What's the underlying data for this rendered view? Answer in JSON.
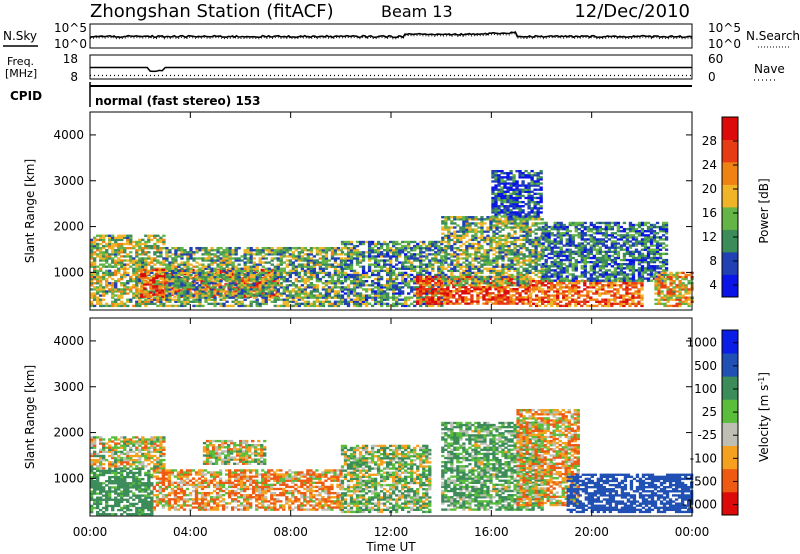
{
  "header": {
    "station": "Zhongshan Station (fitACF)",
    "beam": "Beam 13",
    "date": "12/Dec/2010"
  },
  "noise_panel": {
    "left_label": "N.Sky",
    "right_label": "N.Search",
    "left_ticks": [
      "10^5",
      "10^0"
    ],
    "right_ticks": [
      "10^5",
      "10^0"
    ]
  },
  "freq_panel": {
    "left_label_1": "Freq.",
    "left_label_2": "[MHz]",
    "right_label": "Nave",
    "left_ticks": [
      "18",
      "8"
    ],
    "right_ticks": [
      "60",
      "0"
    ]
  },
  "cpid": {
    "label": "CPID",
    "mode_text": "normal (fast stereo) 153"
  },
  "x_axis": {
    "label": "Time UT",
    "ticks": [
      "00:00",
      "04:00",
      "08:00",
      "12:00",
      "16:00",
      "20:00",
      "00:00"
    ]
  },
  "colors": {
    "power": [
      "#0a14e6",
      "#2040b4",
      "#3c8c5a",
      "#64b446",
      "#f0b428",
      "#f08214",
      "#e63c14",
      "#dc0a0a"
    ],
    "velocity": [
      "#dc0a0a",
      "#ee5a12",
      "#f5a01e",
      "#bebeb4",
      "#5abe3c",
      "#3c8c5a",
      "#2050b4",
      "#0a1ee6"
    ]
  },
  "chart_data": [
    {
      "type": "heatmap",
      "title": "Power",
      "xlabel": "Time UT",
      "ylabel": "Slant Range [km]",
      "x_unit": "hours UT",
      "xlim": [
        0,
        24
      ],
      "ylim": [
        180,
        4500
      ],
      "y_ticks": [
        "1000",
        "2000",
        "3000",
        "4000"
      ],
      "colorbar": {
        "label": "Power [dB]",
        "ticks": [
          "28",
          "24",
          "20",
          "16",
          "12",
          "8",
          "4"
        ],
        "range": [
          0,
          30
        ]
      },
      "echo_regions": [
        {
          "t0": 0.0,
          "t1": 3.0,
          "r0": 250,
          "r1": 1800,
          "dB": 14
        },
        {
          "t0": 2.0,
          "t1": 7.5,
          "r0": 450,
          "r1": 1050,
          "dB": 24
        },
        {
          "t0": 3.0,
          "t1": 10.0,
          "r0": 250,
          "r1": 1550,
          "dB": 12
        },
        {
          "t0": 10.0,
          "t1": 14.0,
          "r0": 250,
          "r1": 1650,
          "dB": 10
        },
        {
          "t0": 13.0,
          "t1": 17.5,
          "r0": 300,
          "r1": 900,
          "dB": 24
        },
        {
          "t0": 14.0,
          "t1": 18.0,
          "r0": 700,
          "r1": 2200,
          "dB": 12
        },
        {
          "t0": 16.0,
          "t1": 18.0,
          "r0": 2200,
          "r1": 3200,
          "dB": 6
        },
        {
          "t0": 17.5,
          "t1": 22.0,
          "r0": 250,
          "r1": 800,
          "dB": 22
        },
        {
          "t0": 18.0,
          "t1": 23.0,
          "r0": 800,
          "r1": 2100,
          "dB": 8
        },
        {
          "t0": 22.5,
          "t1": 24.0,
          "r0": 250,
          "r1": 1000,
          "dB": 18
        }
      ]
    },
    {
      "type": "heatmap",
      "title": "Velocity",
      "xlabel": "Time UT",
      "ylabel": "Slant Range [km]",
      "x_unit": "hours UT",
      "xlim": [
        0,
        24
      ],
      "ylim": [
        180,
        4500
      ],
      "y_ticks": [
        "1000",
        "2000",
        "3000",
        "4000"
      ],
      "colorbar": {
        "label": "Velocity [m s",
        "label_sup": "-1",
        "label_end": "]",
        "ticks": [
          "1000",
          "500",
          "100",
          "25",
          "-25",
          "-100",
          "-500",
          "-1000"
        ]
      },
      "echo_regions": [
        {
          "t0": 0.0,
          "t1": 3.0,
          "r0": 1200,
          "r1": 1900,
          "velocity": 0
        },
        {
          "t0": 0.0,
          "t1": 2.5,
          "r0": 200,
          "r1": 1200,
          "velocity": 200
        },
        {
          "t0": 2.5,
          "t1": 10.0,
          "r0": 300,
          "r1": 1200,
          "velocity": -80
        },
        {
          "t0": 4.5,
          "t1": 7.0,
          "r0": 1300,
          "r1": 1800,
          "velocity": 0
        },
        {
          "t0": 10.0,
          "t1": 13.5,
          "r0": 250,
          "r1": 1700,
          "velocity": 60
        },
        {
          "t0": 14.0,
          "t1": 18.0,
          "r0": 300,
          "r1": 2200,
          "velocity": 120
        },
        {
          "t0": 17.0,
          "t1": 19.5,
          "r0": 400,
          "r1": 2500,
          "velocity": -60
        },
        {
          "t0": 19.0,
          "t1": 24.0,
          "r0": 250,
          "r1": 1100,
          "velocity": 700
        }
      ]
    }
  ]
}
